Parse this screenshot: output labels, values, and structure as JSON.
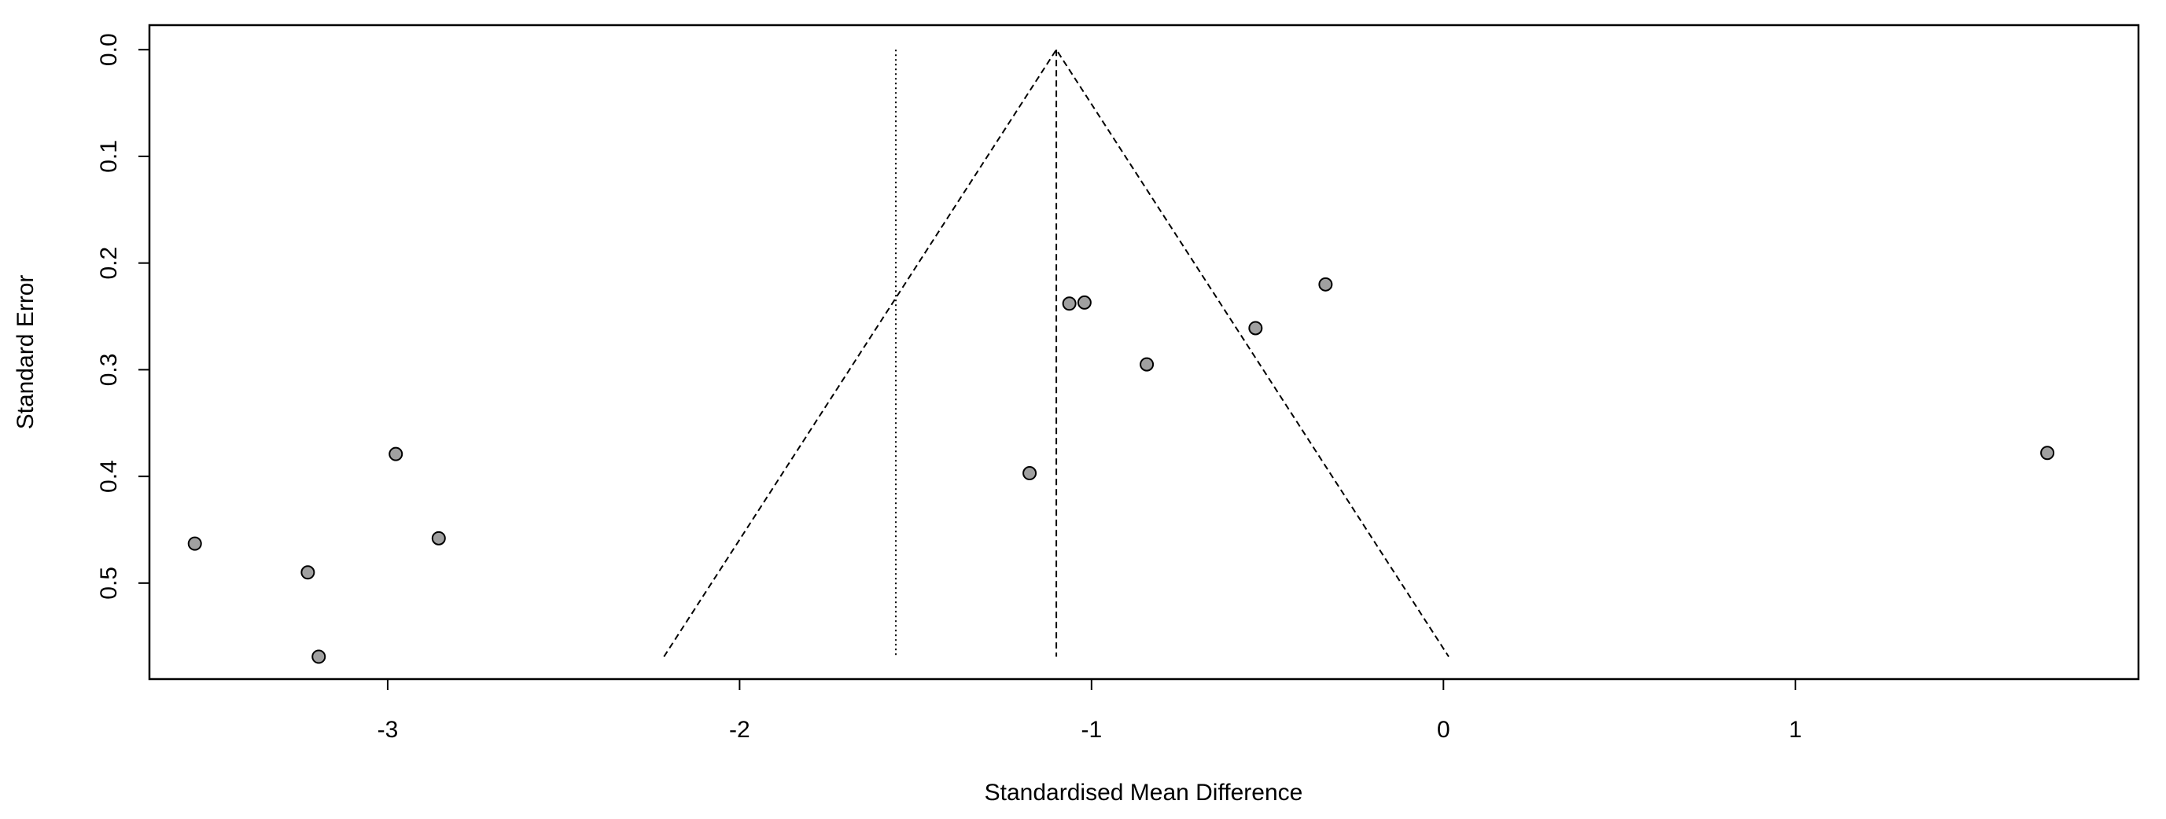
{
  "chart_data": {
    "type": "funnel",
    "x_label": "Standardised Mean Difference",
    "y_label": "Standard Error",
    "xlim": [
      -3.677,
      1.975
    ],
    "ylim": [
      0.59,
      -0.023
    ],
    "xticks": [
      -3,
      -2,
      -1,
      0,
      1
    ],
    "yticks": [
      {
        "value": 0,
        "label": "0.0"
      },
      0.1,
      0.2,
      0.3,
      0.4,
      0.5
    ],
    "point_color": "#a0a0a0",
    "x": [
      -3.548,
      -3.227,
      -3.196,
      -2.977,
      -2.855,
      -1.176,
      -1.063,
      -1.02,
      -0.843,
      -0.534,
      -0.335,
      1.716
    ],
    "values": [
      0.463,
      0.49,
      0.569,
      0.379,
      0.458,
      0.397,
      0.238,
      0.237,
      0.295,
      0.261,
      0.22,
      0.378
    ],
    "funnel": {
      "x": [
        -2.215,
        -1.1,
        0.015
      ],
      "values": [
        0.569,
        0,
        0.569
      ]
    },
    "summary_line": {
      "x": [
        -1.1,
        -1.1
      ],
      "values": [
        0,
        0.569
      ]
    },
    "reference_line": {
      "x": [
        -1.556,
        -1.556
      ],
      "values": [
        0,
        0.569
      ]
    }
  }
}
